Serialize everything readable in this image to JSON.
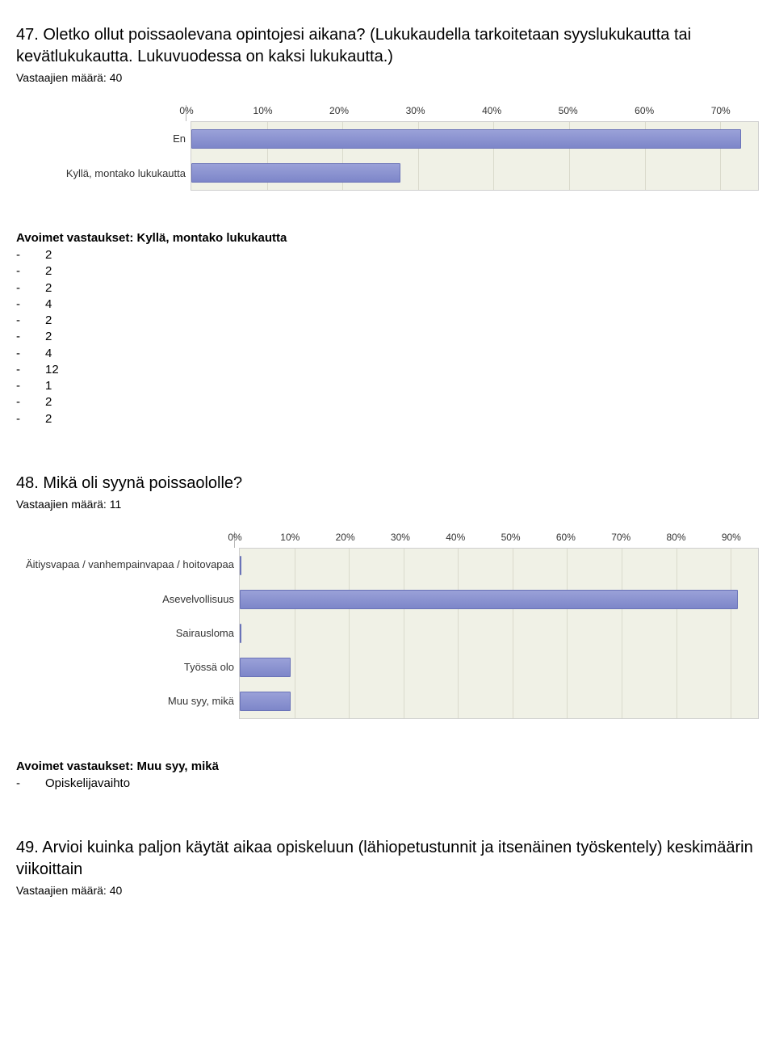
{
  "q47": {
    "title": "47. Oletko ollut poissaolevana opintojesi aikana? (Lukukaudella tarkoitetaan syyslukukautta tai kevätlukukautta. Lukuvuodessa on kaksi lukukautta.)",
    "respondents": "Vastaajien määrä: 40",
    "chart": {
      "type": "bar-horizontal",
      "xmax": 75,
      "ticks": [
        0,
        10,
        20,
        30,
        40,
        50,
        60,
        70
      ],
      "tick_labels": [
        "0%",
        "10%",
        "20%",
        "30%",
        "40%",
        "50%",
        "60%",
        "70%"
      ],
      "label_col_width": 210,
      "bar_color_top": "#9aa1d8",
      "bar_color_bottom": "#7d86c9",
      "bar_border": "#6a73b8",
      "plot_bg": "#f0f1e6",
      "grid_color": "#dadacc",
      "rows": [
        {
          "label": "En",
          "value": 72.5
        },
        {
          "label": "Kyllä, montako lukukautta",
          "value": 27.5
        }
      ]
    },
    "open_header": "Avoimet vastaukset: Kyllä, montako lukukautta",
    "open_answers": [
      "2",
      "2",
      "2",
      "4",
      "2",
      "2",
      "4",
      "12",
      "1",
      "2",
      "2"
    ]
  },
  "q48": {
    "title": "48. Mikä oli syynä poissaololle?",
    "respondents": "Vastaajien määrä: 11",
    "chart": {
      "type": "bar-horizontal",
      "xmax": 95,
      "ticks": [
        0,
        10,
        20,
        30,
        40,
        50,
        60,
        70,
        80,
        90
      ],
      "tick_labels": [
        "0%",
        "10%",
        "20%",
        "30%",
        "40%",
        "50%",
        "60%",
        "70%",
        "80%",
        "90%"
      ],
      "label_col_width": 270,
      "bar_color_top": "#9aa1d8",
      "bar_color_bottom": "#7d86c9",
      "bar_border": "#6a73b8",
      "plot_bg": "#f0f1e6",
      "grid_color": "#dadacc",
      "rows": [
        {
          "label": "Äitiysvapaa / vanhempainvapaa / hoitovapaa",
          "value": 0
        },
        {
          "label": "Asevelvollisuus",
          "value": 91
        },
        {
          "label": "Sairausloma",
          "value": 0
        },
        {
          "label": "Työssä olo",
          "value": 9
        },
        {
          "label": "Muu syy, mikä",
          "value": 9
        }
      ]
    },
    "open_header": "Avoimet vastaukset: Muu syy, mikä",
    "open_answers": [
      "Opiskelijavaihto"
    ]
  },
  "q49": {
    "title": "49. Arvioi kuinka paljon käytät aikaa opiskeluun (lähiopetustunnit ja itsenäinen työskentely) keskimäärin viikoittain",
    "respondents": "Vastaajien määrä: 40"
  }
}
